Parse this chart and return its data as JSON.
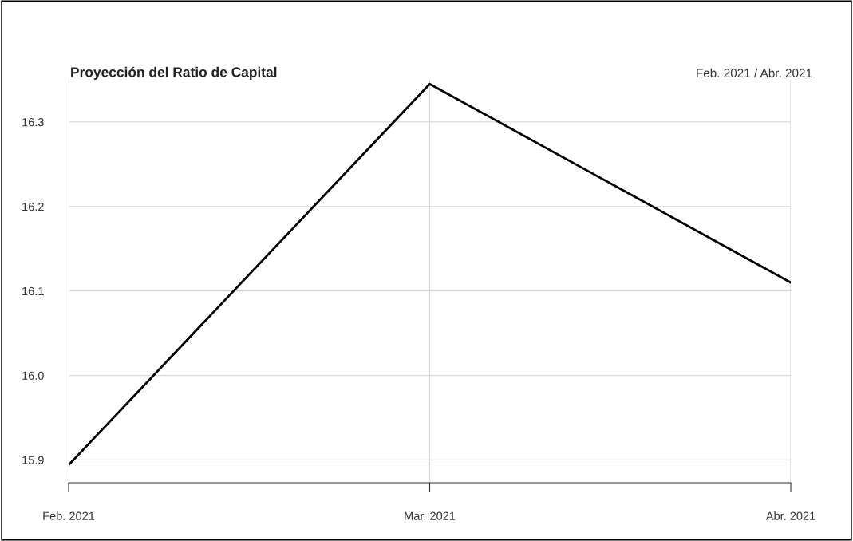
{
  "chart_data": {
    "type": "line",
    "title": "Proyección del Ratio de Capital",
    "subtitle": "Feb. 2021 / Abr. 2021",
    "categories": [
      "Feb. 2021",
      "Mar. 2021",
      "Abr. 2021"
    ],
    "series": [
      {
        "color": "#000000",
        "values": [
          15.894,
          16.345,
          16.11
        ]
      }
    ],
    "ylim": [
      15.873,
      16.35
    ],
    "yticks": [
      {
        "value": 15.9,
        "label": "15.9"
      },
      {
        "value": 16.0,
        "label": "16.0"
      },
      {
        "value": 16.1,
        "label": "16.1"
      },
      {
        "value": 16.2,
        "label": "16.2"
      },
      {
        "value": 16.3,
        "label": "16.3"
      }
    ],
    "grid": true,
    "marker": "none",
    "line_style": "solid",
    "legend": false
  }
}
